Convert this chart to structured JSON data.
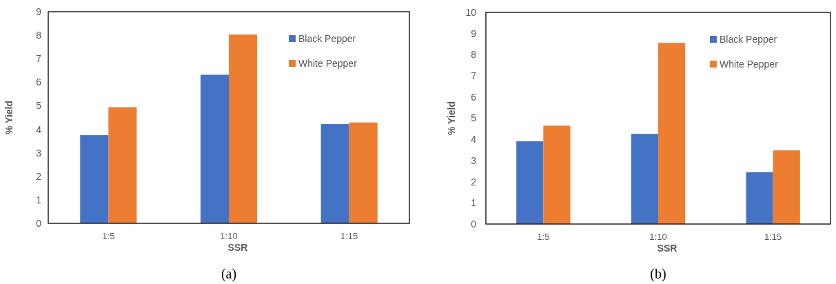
{
  "chart_data": [
    {
      "type": "bar",
      "xlabel": "SSR",
      "ylabel": "% Yield",
      "categories": [
        "1:5",
        "1:10",
        "1:15"
      ],
      "series": [
        {
          "name": "Black Pepper",
          "color": "#4472c4",
          "values": [
            3.75,
            6.32,
            4.22
          ]
        },
        {
          "name": "White Pepper",
          "color": "#ed7d31",
          "values": [
            4.94,
            8.03,
            4.29
          ]
        }
      ],
      "ylim": [
        0,
        9
      ],
      "yticks": [
        0,
        1,
        2,
        3,
        4,
        5,
        6,
        7,
        8,
        9
      ],
      "legend": "top right",
      "annotations": [
        "(a)"
      ]
    },
    {
      "type": "bar",
      "xlabel": "SSR",
      "ylabel": "% Yield",
      "categories": [
        "1:5",
        "1:10",
        "1:15"
      ],
      "series": [
        {
          "name": "Black Pepper",
          "color": "#4472c4",
          "values": [
            3.91,
            4.26,
            2.45
          ]
        },
        {
          "name": "White Pepper",
          "color": "#ed7d31",
          "values": [
            4.65,
            8.56,
            3.48
          ]
        }
      ],
      "ylim": [
        0,
        10
      ],
      "yticks": [
        0,
        1,
        2,
        3,
        4,
        5,
        6,
        7,
        8,
        9,
        10
      ],
      "legend": "top right",
      "annotations": [
        "(b)"
      ]
    }
  ]
}
